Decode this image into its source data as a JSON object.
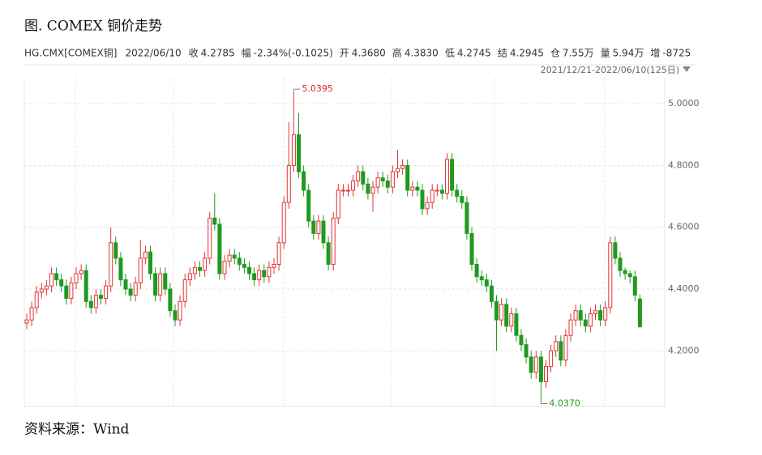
{
  "chart_data": {
    "type": "candlestick",
    "title": "图. COMEX 铜价走势",
    "source": "资料来源：Wind",
    "quote": {
      "symbol": "HG.CMX[COMEX铜]",
      "date": "2022/06/10",
      "fields": [
        {
          "name": "收",
          "value": "4.2785",
          "color": "#1f9a1f"
        },
        {
          "name": "幅",
          "value": "-2.34%(-0.1025)",
          "color": "#1f9a1f"
        },
        {
          "name": "开",
          "value": "4.3680",
          "color": "#1f9a1f"
        },
        {
          "name": "高",
          "value": "4.3830",
          "color": "#d62828"
        },
        {
          "name": "低",
          "value": "4.2745",
          "color": "#1f9a1f"
        },
        {
          "name": "结",
          "value": "4.2945",
          "color": "#1f9a1f"
        },
        {
          "name": "仓",
          "value": "7.55万",
          "color": "#1f9a1f"
        },
        {
          "name": "量",
          "value": "5.94万",
          "color": "#1f9a1f"
        },
        {
          "name": "增",
          "value": "-8725",
          "color": "#1f9a1f"
        }
      ]
    },
    "range": "2021/12/21-2022/06/10(125日)",
    "up_color": "#e03434",
    "down_color": "#1f9a1f",
    "ylim": [
      4.02,
      5.1
    ],
    "yticks": [
      {
        "value": 4.2,
        "label": "4.2000"
      },
      {
        "value": 4.4,
        "label": "4.4000"
      },
      {
        "value": 4.6,
        "label": "4.6000"
      },
      {
        "value": 4.8,
        "label": "4.8000"
      },
      {
        "value": 5,
        "label": "5.0000"
      }
    ],
    "grid": true,
    "annotations": [
      {
        "value": 5.0395,
        "label": "5.0395",
        "color": "#d62828"
      },
      {
        "value": 4.037,
        "label": "4.0370",
        "color": "#1f9a1f"
      }
    ],
    "open": [
      4.29,
      4.3,
      4.34,
      4.39,
      4.4,
      4.41,
      4.45,
      4.43,
      4.41,
      4.37,
      4.42,
      4.45,
      4.46,
      4.36,
      4.34,
      4.38,
      4.37,
      4.41,
      4.55,
      4.5,
      4.43,
      4.4,
      4.38,
      4.42,
      4.5,
      4.52,
      4.45,
      4.38,
      4.45,
      4.4,
      4.33,
      4.3,
      4.36,
      4.43,
      4.45,
      4.47,
      4.46,
      4.5,
      4.63,
      4.61,
      4.45,
      4.49,
      4.51,
      4.5,
      4.48,
      4.47,
      4.45,
      4.43,
      4.46,
      4.44,
      4.47,
      4.48,
      4.55,
      4.68,
      4.8,
      4.9,
      4.78,
      4.72,
      4.62,
      4.58,
      4.62,
      4.55,
      4.48,
      4.63,
      4.72,
      4.72,
      4.72,
      4.75,
      4.78,
      4.74,
      4.71,
      4.73,
      4.76,
      4.75,
      4.73,
      4.78,
      4.79,
      4.8,
      4.72,
      4.73,
      4.72,
      4.66,
      4.68,
      4.72,
      4.72,
      4.71,
      4.82,
      4.72,
      4.7,
      4.68,
      4.58,
      4.48,
      4.44,
      4.43,
      4.41,
      4.36,
      4.3,
      4.35,
      4.28,
      4.32,
      4.25,
      4.22,
      4.18,
      4.13,
      4.18,
      4.1,
      4.15,
      4.2,
      4.23,
      4.17,
      4.25,
      4.3,
      4.33,
      4.3,
      4.28,
      4.32,
      4.33,
      4.3,
      4.34,
      4.55,
      4.5,
      4.46,
      4.45,
      4.44,
      4.368
    ],
    "high": [
      4.32,
      4.36,
      4.41,
      4.42,
      4.43,
      4.47,
      4.47,
      4.45,
      4.43,
      4.44,
      4.47,
      4.48,
      4.48,
      4.38,
      4.4,
      4.4,
      4.43,
      4.6,
      4.57,
      4.52,
      4.45,
      4.42,
      4.44,
      4.56,
      4.54,
      4.54,
      4.47,
      4.47,
      4.47,
      4.42,
      4.35,
      4.38,
      4.45,
      4.47,
      4.49,
      4.49,
      4.52,
      4.65,
      4.71,
      4.63,
      4.51,
      4.53,
      4.53,
      4.52,
      4.5,
      4.49,
      4.47,
      4.48,
      4.48,
      4.49,
      4.5,
      4.57,
      4.7,
      4.94,
      5.0395,
      4.97,
      4.8,
      4.74,
      4.64,
      4.64,
      4.64,
      4.57,
      4.65,
      4.74,
      4.74,
      4.74,
      4.77,
      4.8,
      4.8,
      4.76,
      4.75,
      4.78,
      4.78,
      4.77,
      4.8,
      4.85,
      4.82,
      4.82,
      4.75,
      4.75,
      4.74,
      4.7,
      4.74,
      4.74,
      4.74,
      4.84,
      4.84,
      4.74,
      4.72,
      4.7,
      4.6,
      4.5,
      4.46,
      4.45,
      4.43,
      4.38,
      4.37,
      4.37,
      4.34,
      4.34,
      4.27,
      4.24,
      4.2,
      4.2,
      4.2,
      4.17,
      4.22,
      4.25,
      4.25,
      4.27,
      4.32,
      4.35,
      4.35,
      4.32,
      4.34,
      4.35,
      4.35,
      4.36,
      4.57,
      4.57,
      4.52,
      4.47,
      4.46,
      4.46,
      4.383
    ],
    "low": [
      4.27,
      4.28,
      4.32,
      4.37,
      4.38,
      4.39,
      4.41,
      4.39,
      4.35,
      4.35,
      4.4,
      4.43,
      4.34,
      4.32,
      4.32,
      4.35,
      4.35,
      4.39,
      4.48,
      4.41,
      4.38,
      4.36,
      4.36,
      4.4,
      4.48,
      4.43,
      4.36,
      4.36,
      4.38,
      4.31,
      4.28,
      4.28,
      4.34,
      4.41,
      4.43,
      4.44,
      4.44,
      4.48,
      4.59,
      4.43,
      4.43,
      4.47,
      4.48,
      4.46,
      4.45,
      4.43,
      4.41,
      4.41,
      4.42,
      4.42,
      4.45,
      4.46,
      4.53,
      4.66,
      4.78,
      4.76,
      4.7,
      4.6,
      4.56,
      4.56,
      4.53,
      4.46,
      4.46,
      4.61,
      4.7,
      4.7,
      4.7,
      4.73,
      4.72,
      4.69,
      4.65,
      4.71,
      4.73,
      4.71,
      4.71,
      4.76,
      4.77,
      4.7,
      4.7,
      4.7,
      4.64,
      4.64,
      4.66,
      4.7,
      4.69,
      4.69,
      4.7,
      4.68,
      4.66,
      4.56,
      4.46,
      4.42,
      4.41,
      4.39,
      4.34,
      4.2,
      4.28,
      4.26,
      4.26,
      4.23,
      4.2,
      4.16,
      4.11,
      4.11,
      4.037,
      4.08,
      4.13,
      4.18,
      4.15,
      4.15,
      4.23,
      4.28,
      4.28,
      4.26,
      4.26,
      4.3,
      4.28,
      4.28,
      4.32,
      4.48,
      4.44,
      4.43,
      4.42,
      4.36,
      4.2745
    ],
    "close": [
      4.3,
      4.34,
      4.39,
      4.4,
      4.41,
      4.45,
      4.43,
      4.41,
      4.37,
      4.42,
      4.45,
      4.46,
      4.36,
      4.34,
      4.38,
      4.37,
      4.41,
      4.55,
      4.5,
      4.43,
      4.4,
      4.38,
      4.42,
      4.5,
      4.52,
      4.45,
      4.38,
      4.45,
      4.4,
      4.33,
      4.3,
      4.36,
      4.43,
      4.45,
      4.47,
      4.46,
      4.5,
      4.63,
      4.61,
      4.45,
      4.49,
      4.51,
      4.5,
      4.48,
      4.47,
      4.45,
      4.43,
      4.46,
      4.44,
      4.47,
      4.48,
      4.55,
      4.68,
      4.8,
      4.9,
      4.78,
      4.72,
      4.62,
      4.58,
      4.62,
      4.55,
      4.48,
      4.63,
      4.72,
      4.72,
      4.72,
      4.75,
      4.78,
      4.74,
      4.71,
      4.73,
      4.76,
      4.75,
      4.73,
      4.78,
      4.79,
      4.8,
      4.72,
      4.73,
      4.72,
      4.66,
      4.68,
      4.72,
      4.72,
      4.71,
      4.82,
      4.72,
      4.7,
      4.68,
      4.58,
      4.48,
      4.44,
      4.43,
      4.41,
      4.36,
      4.3,
      4.35,
      4.28,
      4.32,
      4.25,
      4.22,
      4.18,
      4.13,
      4.18,
      4.1,
      4.15,
      4.2,
      4.23,
      4.17,
      4.25,
      4.3,
      4.33,
      4.3,
      4.28,
      4.32,
      4.33,
      4.3,
      4.34,
      4.55,
      4.5,
      4.46,
      4.45,
      4.44,
      4.38,
      4.2785
    ]
  }
}
